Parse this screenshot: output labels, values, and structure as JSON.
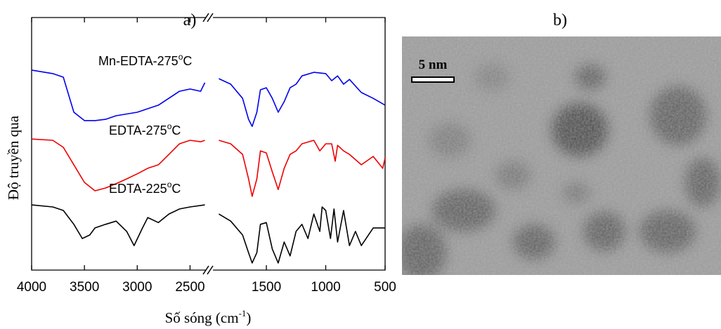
{
  "chart_data": {
    "type": "line",
    "title": "a)",
    "xlabel": [
      "Số sóng (cm",
      "-1",
      ")"
    ],
    "ylabel": "Độ truyền qua",
    "xlim": [
      4000,
      500
    ],
    "x_break": [
      2350,
      1950
    ],
    "xticks": [
      4000,
      3500,
      3000,
      2500,
      1500,
      1000,
      500
    ],
    "ylim": [
      0,
      100
    ],
    "series": [
      {
        "name": [
          "Mn-EDTA-275",
          "o",
          "C"
        ],
        "color": "#0000ee",
        "x": [
          4000,
          3800,
          3700,
          3600,
          3500,
          3400,
          3300,
          3200,
          3000,
          2800,
          2600,
          2500,
          2400,
          2360,
          null,
          1900,
          1800,
          1700,
          1650,
          1620,
          1580,
          1550,
          1500,
          1450,
          1400,
          1350,
          1300,
          1250,
          1200,
          1100,
          1000,
          950,
          900,
          850,
          800,
          700,
          600,
          500
        ],
        "values": [
          79.2,
          77.8,
          76.4,
          62.5,
          59.2,
          59.2,
          59.7,
          61.1,
          62.5,
          65.3,
          70.8,
          71.7,
          70.8,
          74.2,
          null,
          75.8,
          73.6,
          68,
          59.7,
          56.9,
          62.5,
          71.4,
          72.2,
          68,
          62.5,
          66.7,
          72.2,
          73.6,
          76.9,
          78.3,
          77.8,
          75,
          76.9,
          73.6,
          75.5,
          70.3,
          68,
          65.3
        ]
      },
      {
        "name": [
          "EDTA-275",
          "o",
          "C"
        ],
        "color": "#ee0000",
        "x": [
          4000,
          3800,
          3700,
          3600,
          3500,
          3400,
          3300,
          3200,
          3100,
          3000,
          2900,
          2800,
          2700,
          2600,
          2500,
          2400,
          2360,
          null,
          1900,
          1800,
          1700,
          1650,
          1620,
          1580,
          1550,
          1500,
          1450,
          1400,
          1350,
          1300,
          1250,
          1200,
          1100,
          1050,
          1000,
          950,
          920,
          900,
          850,
          800,
          700,
          600,
          520,
          500
        ],
        "values": [
          51.9,
          51.4,
          48.6,
          41.7,
          34.7,
          31.4,
          32.5,
          34.2,
          36.1,
          38.1,
          40.3,
          41.7,
          45.8,
          50,
          51.4,
          50.8,
          51.4,
          null,
          51.4,
          50,
          45.8,
          36.1,
          29.2,
          36.1,
          47.2,
          46.4,
          38.9,
          31.9,
          40.3,
          45.8,
          47.2,
          50,
          51.4,
          47.2,
          50,
          50,
          43.1,
          49.4,
          47.2,
          45.8,
          41.7,
          45,
          40.3,
          44.4
        ]
      },
      {
        "name": [
          "EDTA-225",
          "o",
          "C"
        ],
        "color": "#000000",
        "x": [
          4000,
          3800,
          3700,
          3600,
          3520,
          3450,
          3400,
          3300,
          3200,
          3100,
          3030,
          2950,
          2900,
          2800,
          2700,
          2600,
          2500,
          2360,
          null,
          1900,
          1800,
          1700,
          1650,
          1620,
          1580,
          1550,
          1500,
          1450,
          1400,
          1350,
          1300,
          1250,
          1200,
          1150,
          1100,
          1050,
          1030,
          1000,
          960,
          930,
          900,
          850,
          800,
          750,
          700,
          600,
          500
        ],
        "values": [
          25.8,
          25,
          23.6,
          18.1,
          12.5,
          13.9,
          16.7,
          18.1,
          19.4,
          15.3,
          9.7,
          16.7,
          20.8,
          18.8,
          22.2,
          24.2,
          25,
          25.8,
          null,
          22.2,
          19.4,
          13.9,
          6.9,
          2.8,
          6.9,
          18.1,
          18.8,
          8.3,
          2.8,
          11.1,
          5.6,
          15.3,
          18.1,
          12.5,
          22.2,
          15.3,
          25,
          23.6,
          12.5,
          24.2,
          11.1,
          23.6,
          9.7,
          15.3,
          9.7,
          16.7,
          16.7
        ]
      }
    ]
  },
  "image_panel": {
    "label": "b)",
    "scale_bar": "5 nm"
  }
}
